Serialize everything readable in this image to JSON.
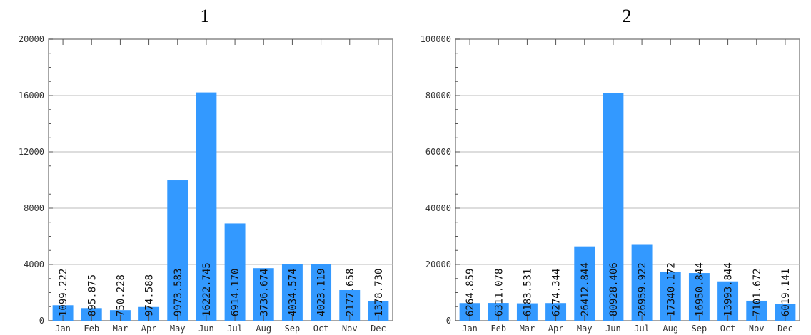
{
  "chart_data": [
    {
      "type": "bar",
      "title": "1",
      "categories": [
        "Jan",
        "Feb",
        "Mar",
        "Apr",
        "May",
        "Jun",
        "Jul",
        "Aug",
        "Sep",
        "Oct",
        "Nov",
        "Dec"
      ],
      "values": [
        1099.222,
        895.875,
        750.228,
        974.588,
        9973.583,
        16222.745,
        6914.17,
        3736.674,
        4034.574,
        4023.119,
        2177.658,
        1378.73
      ],
      "value_labels": [
        "1099.222",
        "895.875",
        "750.228",
        "974.588",
        "9973.583",
        "16222.745",
        "6914.170",
        "3736.674",
        "4034.574",
        "4023.119",
        "2177.658",
        "1378.730"
      ],
      "yticks": [
        0,
        4000,
        8000,
        12000,
        16000,
        20000
      ],
      "ylim": [
        0,
        20000
      ],
      "xlabel": "",
      "ylabel": "",
      "grid": true,
      "bar_color": "#3399ff"
    },
    {
      "type": "bar",
      "title": "2",
      "categories": [
        "Jan",
        "Feb",
        "Mar",
        "Apr",
        "May",
        "Jun",
        "Jul",
        "Aug",
        "Sep",
        "Oct",
        "Nov",
        "Dec"
      ],
      "values": [
        6264.859,
        6311.078,
        6183.531,
        6274.344,
        26412.844,
        80928.406,
        26959.922,
        17340.172,
        16950.844,
        13993.844,
        7101.672,
        6019.141
      ],
      "value_labels": [
        "6264.859",
        "6311.078",
        "6183.531",
        "6274.344",
        "26412.844",
        "80928.406",
        "26959.922",
        "17340.172",
        "16950.844",
        "13993.844",
        "7101.672",
        "6019.141"
      ],
      "yticks": [
        0,
        20000,
        40000,
        60000,
        80000,
        100000
      ],
      "ylim": [
        0,
        100000
      ],
      "xlabel": "",
      "ylabel": "",
      "grid": true,
      "bar_color": "#3399ff"
    }
  ]
}
